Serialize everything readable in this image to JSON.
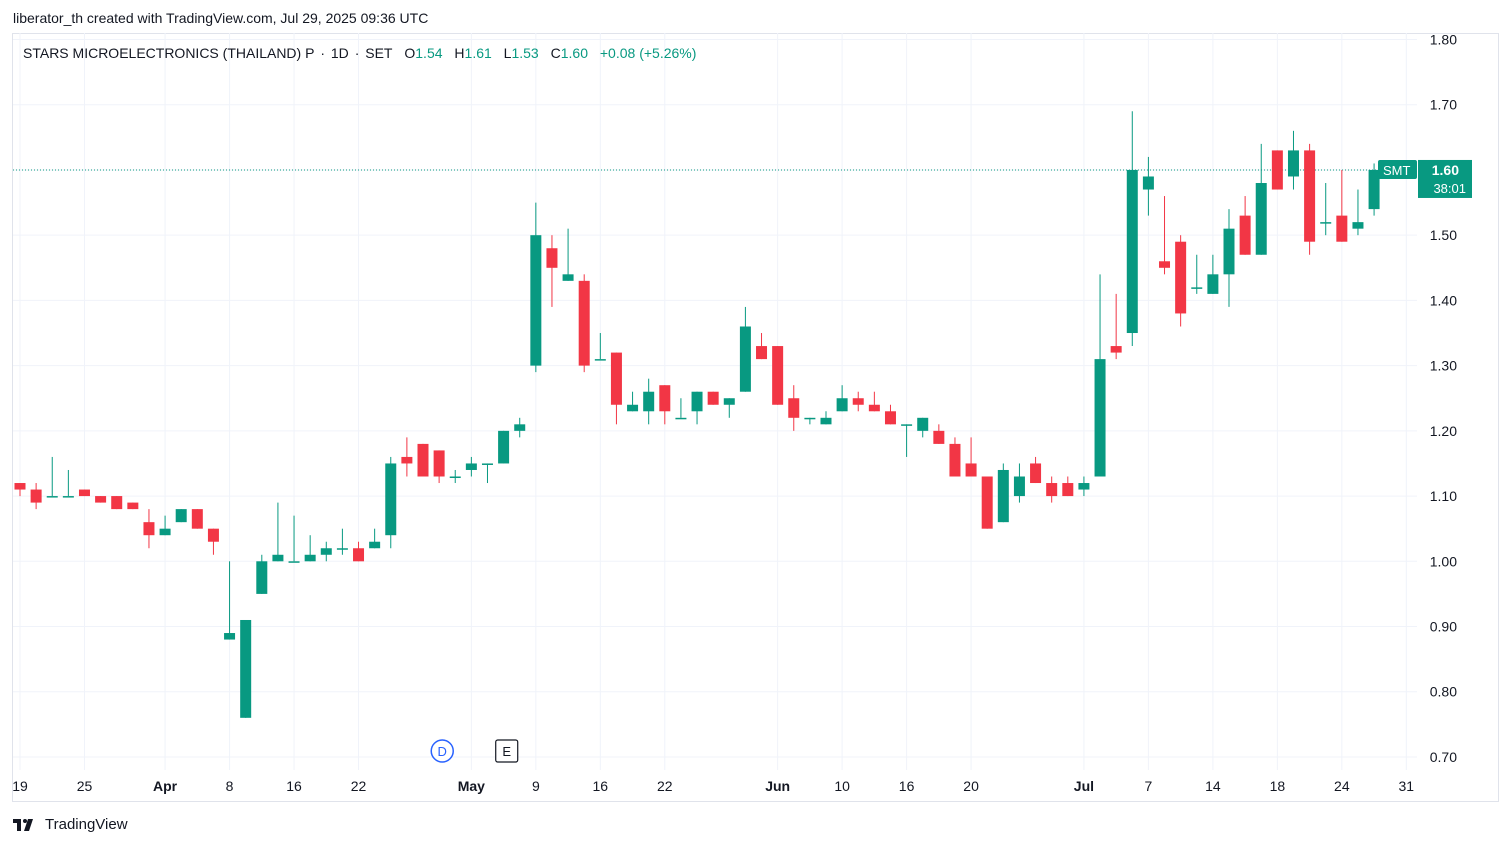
{
  "caption": "liberator_th created with TradingView.com, Jul 29, 2025 09:36 UTC",
  "legend": {
    "symbol_name": "STARS MICROELECTRONICS (THAILAND) P",
    "interval": "1D",
    "exchange": "SET",
    "sep": "·",
    "o_key": "O",
    "o_val": "1.54",
    "h_key": "H",
    "h_val": "1.61",
    "l_key": "L",
    "l_val": "1.53",
    "c_key": "C",
    "c_val": "1.60",
    "change": "+0.08 (+5.26%)"
  },
  "price_tag": {
    "symbol": "SMT",
    "price": "1.60",
    "countdown": "38:01"
  },
  "events": [
    {
      "label": "D",
      "index": 27,
      "kind": "dividend"
    },
    {
      "label": "E",
      "index": 31,
      "kind": "earnings"
    }
  ],
  "footer": {
    "brand": "TradingView"
  },
  "colors": {
    "up": "#089981",
    "down": "#f23645",
    "grid": "#f0f3fa",
    "text": "#131722",
    "dividend": "#2962ff"
  },
  "chart_data": {
    "type": "candlestick",
    "y_range": [
      0.68,
      1.81
    ],
    "y_ticks": [
      "0.70",
      "0.80",
      "0.90",
      "1.00",
      "1.10",
      "1.20",
      "1.30",
      "1.40",
      "1.50",
      "1.60",
      "1.70",
      "1.80"
    ],
    "x_ticks": [
      {
        "label": "19",
        "index": 0
      },
      {
        "label": "25",
        "index": 4
      },
      {
        "label": "Apr",
        "index": 9,
        "bold": true
      },
      {
        "label": "8",
        "index": 13
      },
      {
        "label": "16",
        "index": 17
      },
      {
        "label": "22",
        "index": 21
      },
      {
        "label": "May",
        "index": 28,
        "bold": true
      },
      {
        "label": "9",
        "index": 32
      },
      {
        "label": "16",
        "index": 36
      },
      {
        "label": "22",
        "index": 40
      },
      {
        "label": "Jun",
        "index": 47,
        "bold": true
      },
      {
        "label": "10",
        "index": 51
      },
      {
        "label": "16",
        "index": 55
      },
      {
        "label": "20",
        "index": 59
      },
      {
        "label": "Jul",
        "index": 66,
        "bold": true
      },
      {
        "label": "7",
        "index": 70
      },
      {
        "label": "14",
        "index": 74
      },
      {
        "label": "18",
        "index": 78
      },
      {
        "label": "24",
        "index": 82
      },
      {
        "label": "31",
        "index": 86
      }
    ],
    "last_price": 1.6,
    "candles": [
      {
        "o": 1.12,
        "h": 1.12,
        "l": 1.1,
        "c": 1.11
      },
      {
        "o": 1.11,
        "h": 1.12,
        "l": 1.08,
        "c": 1.09
      },
      {
        "o": 1.1,
        "h": 1.16,
        "l": 1.1,
        "c": 1.1
      },
      {
        "o": 1.1,
        "h": 1.14,
        "l": 1.1,
        "c": 1.1
      },
      {
        "o": 1.11,
        "h": 1.11,
        "l": 1.1,
        "c": 1.1
      },
      {
        "o": 1.1,
        "h": 1.1,
        "l": 1.09,
        "c": 1.09
      },
      {
        "o": 1.1,
        "h": 1.1,
        "l": 1.08,
        "c": 1.08
      },
      {
        "o": 1.09,
        "h": 1.09,
        "l": 1.08,
        "c": 1.08
      },
      {
        "o": 1.06,
        "h": 1.08,
        "l": 1.02,
        "c": 1.04
      },
      {
        "o": 1.04,
        "h": 1.07,
        "l": 1.04,
        "c": 1.05
      },
      {
        "o": 1.06,
        "h": 1.08,
        "l": 1.06,
        "c": 1.08
      },
      {
        "o": 1.08,
        "h": 1.08,
        "l": 1.05,
        "c": 1.05
      },
      {
        "o": 1.05,
        "h": 1.05,
        "l": 1.01,
        "c": 1.03
      },
      {
        "o": 0.88,
        "h": 1.0,
        "l": 0.88,
        "c": 0.89
      },
      {
        "o": 0.76,
        "h": 0.91,
        "l": 0.76,
        "c": 0.91
      },
      {
        "o": 0.95,
        "h": 1.01,
        "l": 0.95,
        "c": 1.0
      },
      {
        "o": 1.0,
        "h": 1.09,
        "l": 1.0,
        "c": 1.01
      },
      {
        "o": 1.0,
        "h": 1.07,
        "l": 1.0,
        "c": 1.0
      },
      {
        "o": 1.0,
        "h": 1.04,
        "l": 1.0,
        "c": 1.01
      },
      {
        "o": 1.01,
        "h": 1.03,
        "l": 1.0,
        "c": 1.02
      },
      {
        "o": 1.02,
        "h": 1.05,
        "l": 1.01,
        "c": 1.02
      },
      {
        "o": 1.02,
        "h": 1.03,
        "l": 1.0,
        "c": 1.0
      },
      {
        "o": 1.02,
        "h": 1.05,
        "l": 1.02,
        "c": 1.03
      },
      {
        "o": 1.04,
        "h": 1.16,
        "l": 1.02,
        "c": 1.15
      },
      {
        "o": 1.16,
        "h": 1.19,
        "l": 1.13,
        "c": 1.15
      },
      {
        "o": 1.18,
        "h": 1.18,
        "l": 1.13,
        "c": 1.13
      },
      {
        "o": 1.17,
        "h": 1.17,
        "l": 1.12,
        "c": 1.13
      },
      {
        "o": 1.13,
        "h": 1.14,
        "l": 1.12,
        "c": 1.13
      },
      {
        "o": 1.14,
        "h": 1.16,
        "l": 1.13,
        "c": 1.15
      },
      {
        "o": 1.15,
        "h": 1.15,
        "l": 1.12,
        "c": 1.15
      },
      {
        "o": 1.15,
        "h": 1.2,
        "l": 1.15,
        "c": 1.2
      },
      {
        "o": 1.2,
        "h": 1.22,
        "l": 1.19,
        "c": 1.21
      },
      {
        "o": 1.3,
        "h": 1.55,
        "l": 1.29,
        "c": 1.5
      },
      {
        "o": 1.48,
        "h": 1.5,
        "l": 1.39,
        "c": 1.45
      },
      {
        "o": 1.43,
        "h": 1.51,
        "l": 1.43,
        "c": 1.44
      },
      {
        "o": 1.43,
        "h": 1.44,
        "l": 1.29,
        "c": 1.3
      },
      {
        "o": 1.31,
        "h": 1.35,
        "l": 1.31,
        "c": 1.31
      },
      {
        "o": 1.32,
        "h": 1.32,
        "l": 1.21,
        "c": 1.24
      },
      {
        "o": 1.23,
        "h": 1.26,
        "l": 1.23,
        "c": 1.24
      },
      {
        "o": 1.23,
        "h": 1.28,
        "l": 1.21,
        "c": 1.26
      },
      {
        "o": 1.27,
        "h": 1.27,
        "l": 1.21,
        "c": 1.23
      },
      {
        "o": 1.22,
        "h": 1.25,
        "l": 1.22,
        "c": 1.22
      },
      {
        "o": 1.23,
        "h": 1.26,
        "l": 1.21,
        "c": 1.26
      },
      {
        "o": 1.26,
        "h": 1.26,
        "l": 1.24,
        "c": 1.24
      },
      {
        "o": 1.24,
        "h": 1.25,
        "l": 1.22,
        "c": 1.25
      },
      {
        "o": 1.26,
        "h": 1.39,
        "l": 1.26,
        "c": 1.36
      },
      {
        "o": 1.33,
        "h": 1.35,
        "l": 1.31,
        "c": 1.31
      },
      {
        "o": 1.33,
        "h": 1.33,
        "l": 1.24,
        "c": 1.24
      },
      {
        "o": 1.25,
        "h": 1.27,
        "l": 1.2,
        "c": 1.22
      },
      {
        "o": 1.22,
        "h": 1.22,
        "l": 1.21,
        "c": 1.22
      },
      {
        "o": 1.21,
        "h": 1.23,
        "l": 1.21,
        "c": 1.22
      },
      {
        "o": 1.23,
        "h": 1.27,
        "l": 1.23,
        "c": 1.25
      },
      {
        "o": 1.25,
        "h": 1.26,
        "l": 1.23,
        "c": 1.24
      },
      {
        "o": 1.24,
        "h": 1.26,
        "l": 1.23,
        "c": 1.23
      },
      {
        "o": 1.23,
        "h": 1.24,
        "l": 1.21,
        "c": 1.21
      },
      {
        "o": 1.21,
        "h": 1.21,
        "l": 1.16,
        "c": 1.21
      },
      {
        "o": 1.2,
        "h": 1.22,
        "l": 1.19,
        "c": 1.22
      },
      {
        "o": 1.2,
        "h": 1.21,
        "l": 1.18,
        "c": 1.18
      },
      {
        "o": 1.18,
        "h": 1.19,
        "l": 1.13,
        "c": 1.13
      },
      {
        "o": 1.15,
        "h": 1.19,
        "l": 1.13,
        "c": 1.13
      },
      {
        "o": 1.13,
        "h": 1.13,
        "l": 1.05,
        "c": 1.05
      },
      {
        "o": 1.06,
        "h": 1.15,
        "l": 1.06,
        "c": 1.14
      },
      {
        "o": 1.1,
        "h": 1.15,
        "l": 1.09,
        "c": 1.13
      },
      {
        "o": 1.15,
        "h": 1.16,
        "l": 1.12,
        "c": 1.12
      },
      {
        "o": 1.12,
        "h": 1.13,
        "l": 1.09,
        "c": 1.1
      },
      {
        "o": 1.12,
        "h": 1.13,
        "l": 1.1,
        "c": 1.1
      },
      {
        "o": 1.11,
        "h": 1.13,
        "l": 1.1,
        "c": 1.12
      },
      {
        "o": 1.13,
        "h": 1.44,
        "l": 1.13,
        "c": 1.31
      },
      {
        "o": 1.33,
        "h": 1.41,
        "l": 1.31,
        "c": 1.32
      },
      {
        "o": 1.35,
        "h": 1.69,
        "l": 1.33,
        "c": 1.6
      },
      {
        "o": 1.57,
        "h": 1.62,
        "l": 1.53,
        "c": 1.59
      },
      {
        "o": 1.46,
        "h": 1.56,
        "l": 1.44,
        "c": 1.45
      },
      {
        "o": 1.49,
        "h": 1.5,
        "l": 1.36,
        "c": 1.38
      },
      {
        "o": 1.42,
        "h": 1.47,
        "l": 1.41,
        "c": 1.42
      },
      {
        "o": 1.41,
        "h": 1.47,
        "l": 1.41,
        "c": 1.44
      },
      {
        "o": 1.44,
        "h": 1.54,
        "l": 1.39,
        "c": 1.51
      },
      {
        "o": 1.53,
        "h": 1.56,
        "l": 1.47,
        "c": 1.47
      },
      {
        "o": 1.47,
        "h": 1.64,
        "l": 1.47,
        "c": 1.58
      },
      {
        "o": 1.63,
        "h": 1.63,
        "l": 1.57,
        "c": 1.57
      },
      {
        "o": 1.59,
        "h": 1.66,
        "l": 1.57,
        "c": 1.63
      },
      {
        "o": 1.63,
        "h": 1.64,
        "l": 1.47,
        "c": 1.49
      },
      {
        "o": 1.52,
        "h": 1.58,
        "l": 1.5,
        "c": 1.52
      },
      {
        "o": 1.53,
        "h": 1.6,
        "l": 1.49,
        "c": 1.49
      },
      {
        "o": 1.51,
        "h": 1.57,
        "l": 1.5,
        "c": 1.52
      },
      {
        "o": 1.54,
        "h": 1.61,
        "l": 1.53,
        "c": 1.6
      }
    ]
  }
}
